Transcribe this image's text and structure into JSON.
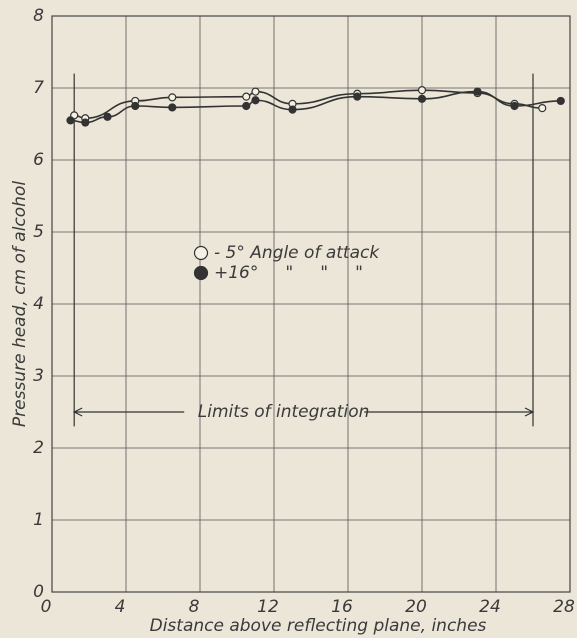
{
  "chart_data": {
    "type": "scatter",
    "xlabel": "Distance above reflecting plane, inches",
    "ylabel": "Pressure head, cm of alcohol",
    "xlim": [
      0,
      28
    ],
    "xticks": [
      0,
      4,
      8,
      12,
      16,
      20,
      24,
      28
    ],
    "ylim": [
      0,
      8
    ],
    "yticks": [
      0,
      1,
      2,
      3,
      4,
      5,
      6,
      7,
      8
    ],
    "grid": true,
    "series": [
      {
        "name": "- 5° Angle of attack",
        "marker": "open",
        "color": "#333333",
        "x": [
          1.2,
          1.8,
          4.5,
          6.5,
          10.5,
          11,
          13,
          16.5,
          20,
          23,
          25,
          26.5
        ],
        "values": [
          6.62,
          6.58,
          6.82,
          6.87,
          6.88,
          6.95,
          6.78,
          6.92,
          6.97,
          6.93,
          6.78,
          6.72
        ]
      },
      {
        "name": "+16°     \"     \"     \"",
        "marker": "filled",
        "color": "#333333",
        "x": [
          1,
          1.8,
          3,
          4.5,
          6.5,
          10.5,
          11,
          13,
          16.5,
          20,
          23,
          25,
          27.5
        ],
        "values": [
          6.55,
          6.52,
          6.6,
          6.75,
          6.73,
          6.75,
          6.83,
          6.7,
          6.88,
          6.85,
          6.95,
          6.75,
          6.82
        ]
      }
    ],
    "limits": {
      "label": "Limits of integration",
      "x": [
        1.2,
        26
      ],
      "y": 2.5
    }
  }
}
